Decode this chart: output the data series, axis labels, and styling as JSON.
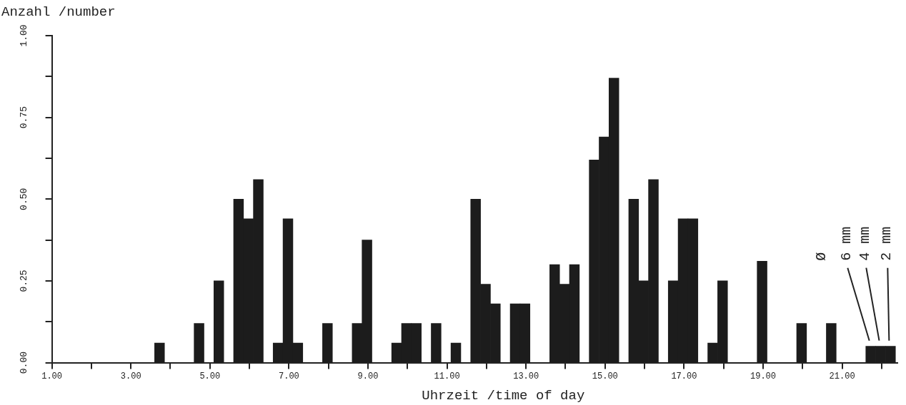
{
  "chart_data": {
    "type": "bar",
    "xlabel": "Uhrzeit /time of day",
    "ylabel": "Anzahl /number",
    "x": [
      3.725,
      4.725,
      5.225,
      5.725,
      5.975,
      6.225,
      6.725,
      6.975,
      7.225,
      7.975,
      8.725,
      8.975,
      9.725,
      9.975,
      10.225,
      10.725,
      11.225,
      11.725,
      11.975,
      12.225,
      12.725,
      12.975,
      13.725,
      13.975,
      14.225,
      14.725,
      14.975,
      15.225,
      15.725,
      15.975,
      16.225,
      16.725,
      16.975,
      17.225,
      17.725,
      17.975,
      18.975,
      19.975,
      20.725,
      21.725,
      21.975,
      22.225
    ],
    "values": [
      0.06,
      0.12,
      0.25,
      0.5,
      0.44,
      0.56,
      0.06,
      0.44,
      0.06,
      0.12,
      0.12,
      0.375,
      0.06,
      0.12,
      0.12,
      0.12,
      0.06,
      0.5,
      0.24,
      0.18,
      0.18,
      0.18,
      0.3,
      0.24,
      0.3,
      0.62,
      0.69,
      0.87,
      0.5,
      0.25,
      0.56,
      0.25,
      0.44,
      0.44,
      0.06,
      0.25,
      0.31,
      0.12,
      0.12,
      0.05,
      0.05,
      0.05
    ],
    "color": "#1c1c1c",
    "xlim": [
      1,
      22.4
    ],
    "xticks": [
      {
        "value": 1,
        "label": "1.00"
      },
      {
        "value": 2,
        "label": null
      },
      {
        "value": 3,
        "label": "3.00"
      },
      {
        "value": 4,
        "label": null
      },
      {
        "value": 5,
        "label": "5.00"
      },
      {
        "value": 6,
        "label": null
      },
      {
        "value": 7,
        "label": "7.00"
      },
      {
        "value": 8,
        "label": null
      },
      {
        "value": 9,
        "label": "9.00"
      },
      {
        "value": 10,
        "label": null
      },
      {
        "value": 11,
        "label": "11.00"
      },
      {
        "value": 12,
        "label": null
      },
      {
        "value": 13,
        "label": "13.00"
      },
      {
        "value": 14,
        "label": null
      },
      {
        "value": 15,
        "label": "15.00"
      },
      {
        "value": 16,
        "label": null
      },
      {
        "value": 17,
        "label": "17.00"
      },
      {
        "value": 18,
        "label": null
      },
      {
        "value": 19,
        "label": "19.00"
      },
      {
        "value": 20,
        "label": null
      },
      {
        "value": 21,
        "label": "21.00"
      },
      {
        "value": 22,
        "label": null
      }
    ],
    "ylim": [
      0,
      1
    ],
    "yticks": [
      {
        "value": 0,
        "label": "0.00"
      },
      {
        "value": 0.125,
        "label": null
      },
      {
        "value": 0.25,
        "label": "0.25"
      },
      {
        "value": 0.375,
        "label": null
      },
      {
        "value": 0.5,
        "label": "0.50"
      },
      {
        "value": 0.625,
        "label": null
      },
      {
        "value": 0.75,
        "label": "0.75"
      },
      {
        "value": 0.875,
        "label": null
      },
      {
        "value": 1,
        "label": "1.00"
      }
    ],
    "grid": false,
    "legend": false,
    "annotations": [
      "Ø",
      "6 mm",
      "4 mm",
      "2 mm"
    ]
  }
}
